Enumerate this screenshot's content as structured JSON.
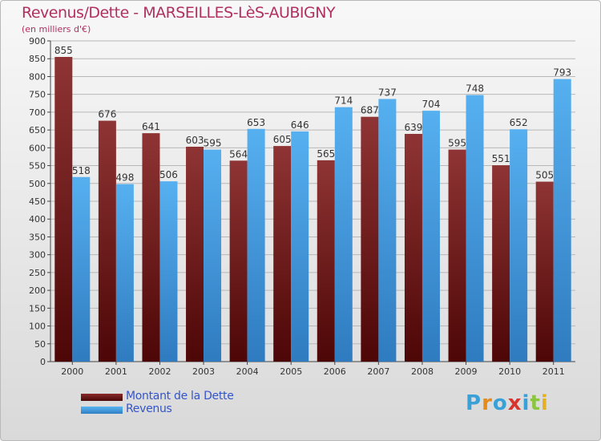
{
  "header": {
    "title": "Revenus/Dette - MARSEILLES-LèS-AUBIGNY",
    "subtitle": "(en milliers d'€)"
  },
  "legend": {
    "items": [
      {
        "label": "Montant de la Dette",
        "color": "#6e1a1a"
      },
      {
        "label": "Revenus",
        "color": "#4aa3e8"
      }
    ]
  },
  "logo": {
    "text": "Proxiti",
    "letters": [
      "P",
      "r",
      "o",
      "x",
      "i",
      "t",
      "i"
    ],
    "colors": [
      "#3aa0d8",
      "#e68a1a",
      "#3aa0d8",
      "#d8342e",
      "#3aa0d8",
      "#8cc63f",
      "#e6b020"
    ]
  },
  "chart_data": {
    "type": "bar",
    "title": "Revenus/Dette - MARSEILLES-LèS-AUBIGNY",
    "subtitle": "(en milliers d'€)",
    "xlabel": "",
    "ylabel": "",
    "ylim": [
      0,
      900
    ],
    "ytick_step": 50,
    "grid": true,
    "legend_position": "bottom-left",
    "categories": [
      "2000",
      "2001",
      "2002",
      "2003",
      "2004",
      "2005",
      "2006",
      "2007",
      "2008",
      "2009",
      "2010",
      "2011"
    ],
    "series": [
      {
        "name": "Montant de la Dette",
        "color": "#6e1a1a",
        "values": [
          855,
          676,
          641,
          603,
          564,
          605,
          565,
          687,
          639,
          595,
          551,
          505
        ]
      },
      {
        "name": "Revenus",
        "color": "#4aa3e8",
        "values": [
          518,
          498,
          506,
          595,
          653,
          646,
          714,
          737,
          704,
          748,
          652,
          793
        ]
      }
    ]
  }
}
